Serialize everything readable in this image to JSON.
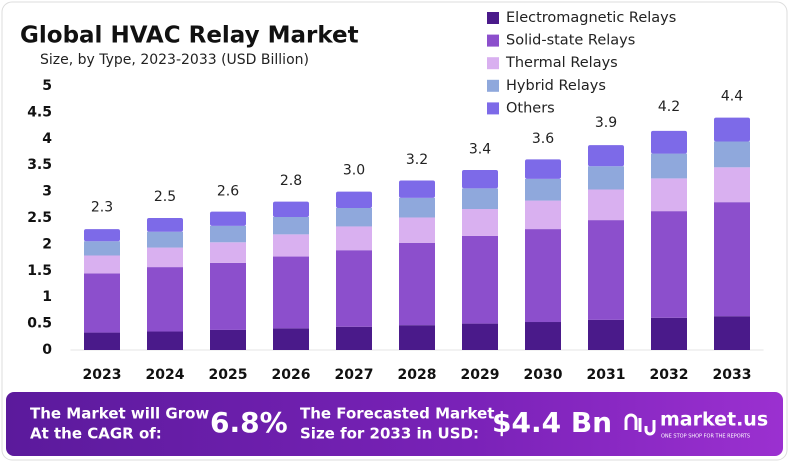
{
  "chart_data": {
    "type": "stacked_bar",
    "title": "Global HVAC Relay Market",
    "subtitle": "Size, by Type, 2023-2033 (USD Billion)",
    "categories": [
      "2023",
      "2024",
      "2025",
      "2026",
      "2027",
      "2028",
      "2029",
      "2030",
      "2031",
      "2032",
      "2033"
    ],
    "series": [
      {
        "name": "Electromagnetic Relays",
        "color": "#4a1a8a",
        "values": [
          0.33,
          0.35,
          0.38,
          0.41,
          0.44,
          0.47,
          0.5,
          0.53,
          0.57,
          0.61,
          0.64
        ]
      },
      {
        "name": "Solid-state Relays",
        "color": "#8c4fcc",
        "values": [
          1.12,
          1.22,
          1.27,
          1.36,
          1.45,
          1.56,
          1.66,
          1.76,
          1.89,
          2.02,
          2.16
        ]
      },
      {
        "name": "Thermal Relays",
        "color": "#d9b0f0",
        "values": [
          0.34,
          0.37,
          0.39,
          0.42,
          0.45,
          0.48,
          0.51,
          0.54,
          0.58,
          0.62,
          0.66
        ]
      },
      {
        "name": "Hybrid Relays",
        "color": "#8fa8dc",
        "values": [
          0.27,
          0.3,
          0.31,
          0.33,
          0.35,
          0.37,
          0.39,
          0.41,
          0.44,
          0.47,
          0.49
        ]
      },
      {
        "name": "Others",
        "color": "#7d6ae8",
        "values": [
          0.23,
          0.26,
          0.27,
          0.29,
          0.31,
          0.33,
          0.35,
          0.37,
          0.4,
          0.43,
          0.45
        ]
      }
    ],
    "totals": {
      "values": [
        2.3,
        2.5,
        2.6,
        2.8,
        3.0,
        3.2,
        3.4,
        3.6,
        3.9,
        4.2,
        4.4
      ],
      "value_labels": [
        "2.3",
        "2.5",
        "2.6",
        "2.8",
        "3.0",
        "3.2",
        "3.4",
        "3.6",
        "3.9",
        "4.2",
        "4.4"
      ]
    },
    "ylim": [
      0,
      5
    ],
    "yticks": [
      0,
      0.5,
      1,
      1.5,
      2,
      2.5,
      3,
      3.5,
      4,
      4.5,
      5
    ],
    "grid": false
  },
  "banner": {
    "cagr_text_1": "The Market will Grow",
    "cagr_text_2": "At the CAGR of:",
    "cagr": "6.8%",
    "forecast_text_1": "The Forecasted Market",
    "forecast_text_2": "Size for 2033 in USD:",
    "forecast": "$4.4 Bn",
    "brand": "market.us",
    "tagline": "ONE STOP SHOP FOR THE REPORTS"
  }
}
